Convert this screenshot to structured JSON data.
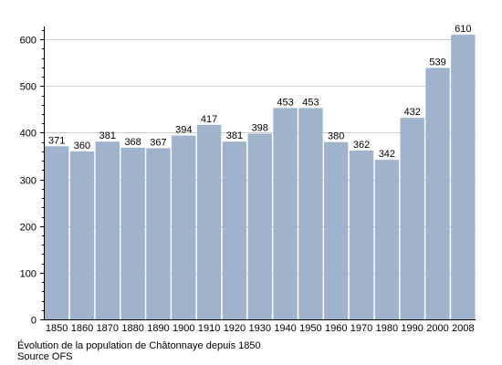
{
  "chart_data": {
    "type": "bar",
    "title": "",
    "xlabel": "",
    "ylabel": "",
    "categories": [
      "1850",
      "1860",
      "1870",
      "1880",
      "1890",
      "1900",
      "1910",
      "1920",
      "1930",
      "1940",
      "1950",
      "1960",
      "1970",
      "1980",
      "1990",
      "2000",
      "2008"
    ],
    "values": [
      371,
      360,
      381,
      368,
      367,
      394,
      417,
      381,
      398,
      453,
      453,
      380,
      362,
      342,
      432,
      539,
      610
    ],
    "ylim": [
      0,
      620
    ],
    "yticks": [
      0,
      100,
      200,
      300,
      400,
      500,
      600
    ],
    "grid": true,
    "bar_color": "#9fb3cc",
    "grid_color": "#cccccc",
    "data_labels": true
  },
  "captions": {
    "title": "Évolution de la population de Châtonnaye depuis 1850",
    "source": "Source OFS"
  }
}
